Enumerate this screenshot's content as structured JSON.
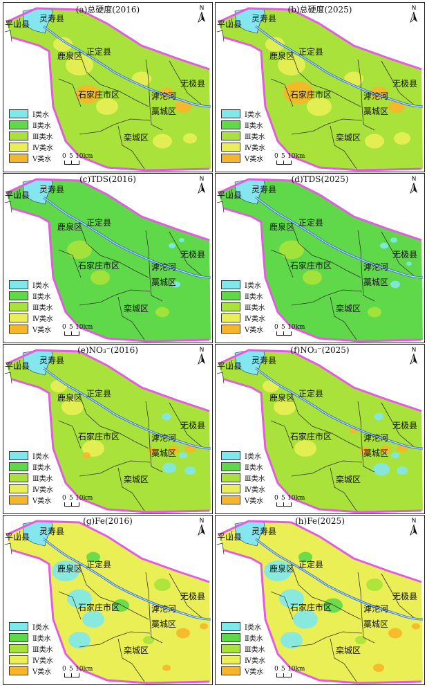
{
  "colors": {
    "class1": "#7fe8ec",
    "class2": "#5fd94a",
    "class3": "#a9e23a",
    "class4": "#e9ef55",
    "class5": "#f7b62a",
    "boundary": "#e25be0",
    "river": "#3a70c8",
    "reservoir": "#84e6ee"
  },
  "legend": [
    "Ⅰ类水",
    "Ⅱ类水",
    "Ⅲ类水",
    "Ⅳ类水",
    "Ⅴ类水"
  ],
  "scale": {
    "labels": [
      "0",
      "5",
      "10km"
    ]
  },
  "north_label": "N",
  "place_labels": {
    "pingshan": "平山县",
    "lingshou": "灵寿县",
    "zhengding": "正定县",
    "luquan": "鹿泉区",
    "wuji": "无极县",
    "shijiazhuang": "石家庄市区",
    "hutuo": "滹沱河",
    "gaocheng": "藁城区",
    "luancheng": "栾城区"
  },
  "panels": [
    {
      "title": "(a)总硬度(2016)",
      "base": "class3"
    },
    {
      "title": "(b)总硬度(2025)",
      "base": "class3"
    },
    {
      "title": "(c)TDS(2016)",
      "base": "class2"
    },
    {
      "title": "(d)TDS(2025)",
      "base": "class2"
    },
    {
      "title": "(e)NO₃⁻(2016)",
      "base": "class3"
    },
    {
      "title": "(f)NO₃⁻(2025)",
      "base": "class3"
    },
    {
      "title": "(g)Fe(2016)",
      "base": "class4"
    },
    {
      "title": "(h)Fe(2025)",
      "base": "class4"
    }
  ]
}
